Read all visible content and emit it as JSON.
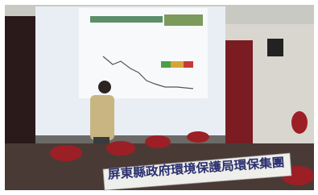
{
  "banner": {
    "text": "屏東縣政府環境保護局環保集團"
  }
}
